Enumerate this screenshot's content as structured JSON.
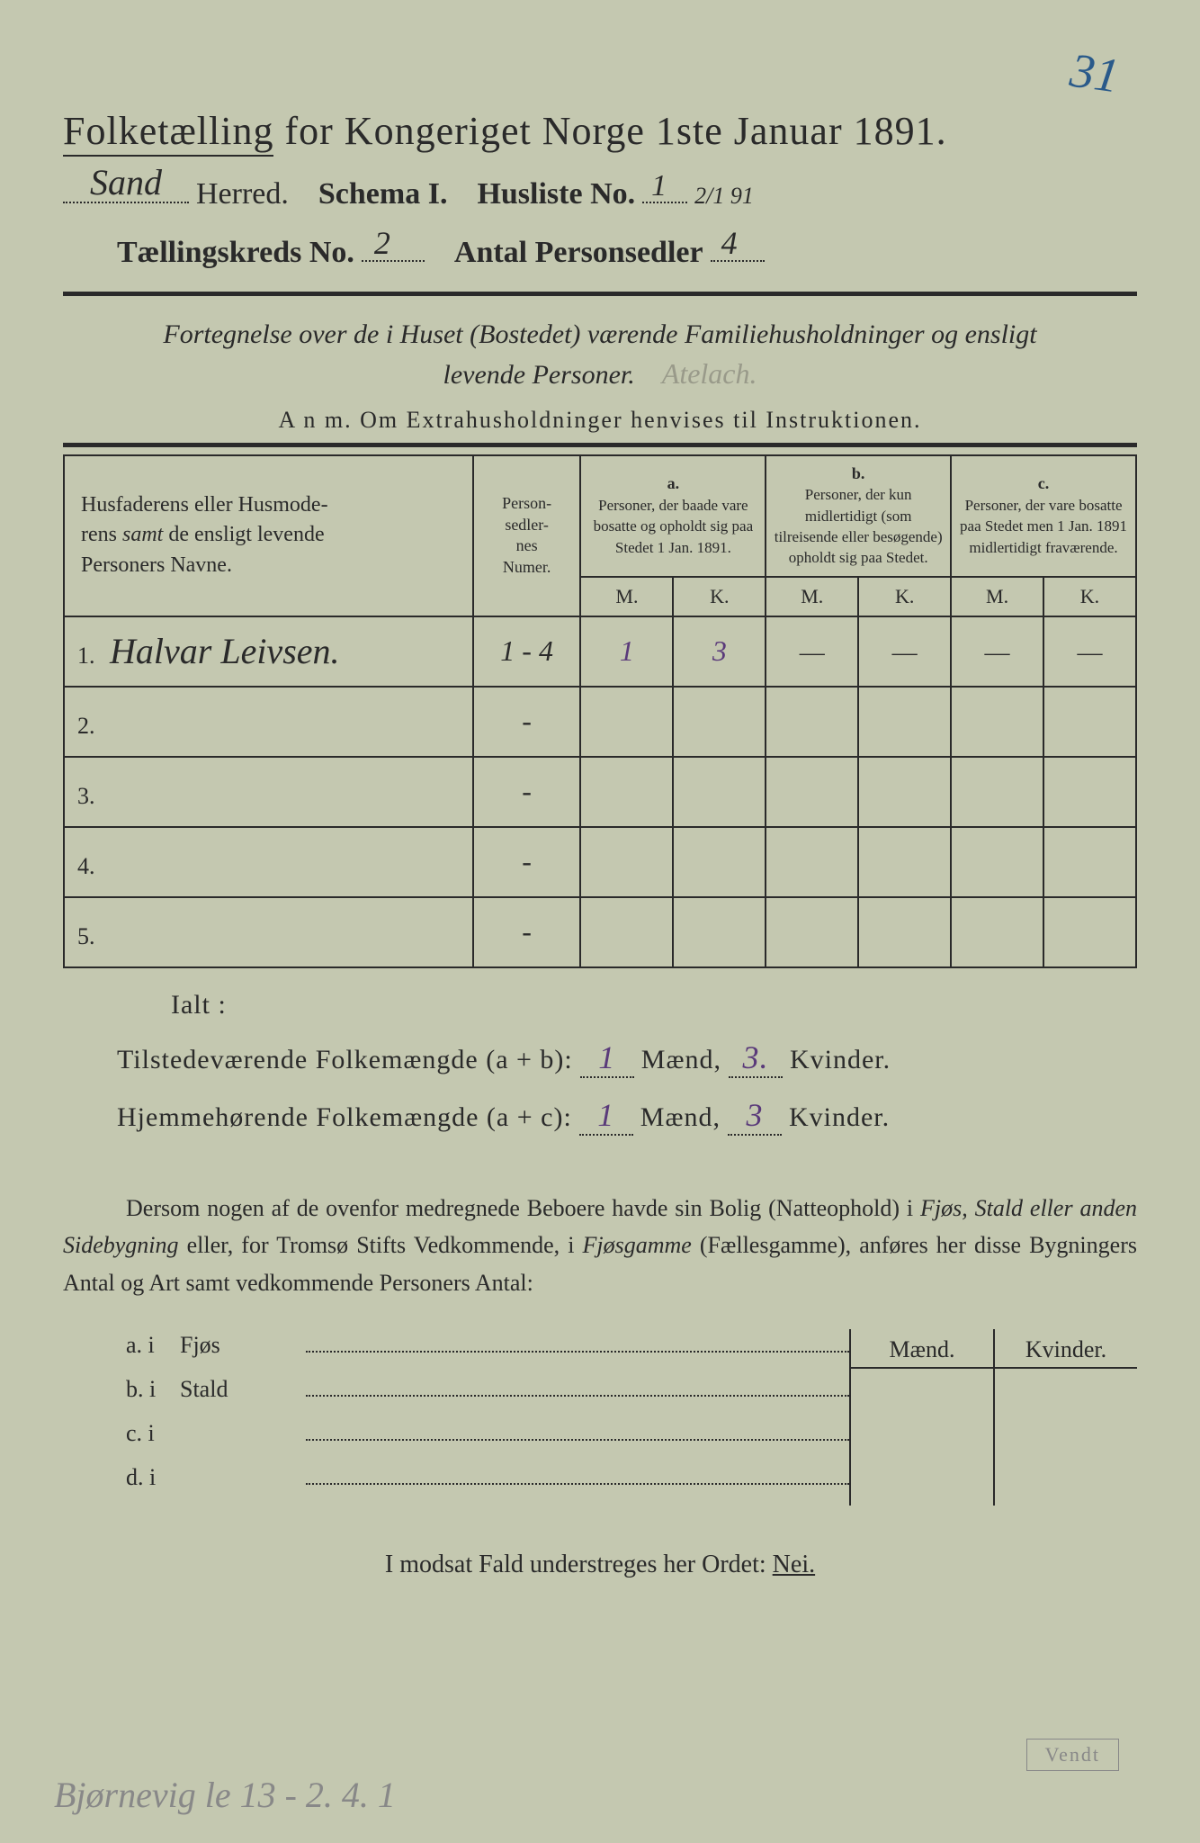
{
  "page_number_top": "31",
  "title": "Folketælling for Kongeriget Norge 1ste Januar 1891.",
  "title_underline_word": "Folketælling",
  "header": {
    "herred_hw": "Sand",
    "herred_label": "Herred.",
    "schema_label": "Schema I.",
    "husliste_label": "Husliste No.",
    "husliste_hw": "1",
    "husliste_frac": "2/1 91",
    "kreds_label": "Tællingskreds No.",
    "kreds_hw": "2",
    "antal_label": "Antal Personsedler",
    "antal_hw": "4"
  },
  "fortegnelse_line1": "Fortegnelse over de i Huset (Bostedet) værende Familiehusholdninger og ensligt",
  "fortegnelse_line2": "levende Personer.",
  "fortegnelse_faint": "Atelach.",
  "anm": "A n m.  Om Extrahusholdninger henvises til Instruktionen.",
  "table": {
    "col_name_header": "Husfaderens eller Husmoderens samt de ensligt levende Personers Navne.",
    "col_num_header": "Personsedlernes Numer.",
    "col_a_label": "a.",
    "col_a_text": "Personer, der baade vare bosatte og opholdt sig paa Stedet 1 Jan. 1891.",
    "col_b_label": "b.",
    "col_b_text": "Personer, der kun midlertidigt (som tilreisende eller besøgende) opholdt sig paa Stedet.",
    "col_c_label": "c.",
    "col_c_text": "Personer, der vare bosatte paa Stedet men 1 Jan. 1891 midlertidigt fraværende.",
    "m_label": "M.",
    "k_label": "K.",
    "rows": [
      {
        "num": "1.",
        "name_hw": "Halvar Leivsen.",
        "sedler": "1 - 4",
        "a_m": "1",
        "a_k": "3",
        "b_m": "—",
        "b_k": "—",
        "c_m": "—",
        "c_k": "—"
      },
      {
        "num": "2.",
        "name_hw": "",
        "sedler": "-",
        "a_m": "",
        "a_k": "",
        "b_m": "",
        "b_k": "",
        "c_m": "",
        "c_k": ""
      },
      {
        "num": "3.",
        "name_hw": "",
        "sedler": "-",
        "a_m": "",
        "a_k": "",
        "b_m": "",
        "b_k": "",
        "c_m": "",
        "c_k": ""
      },
      {
        "num": "4.",
        "name_hw": "",
        "sedler": "-",
        "a_m": "",
        "a_k": "",
        "b_m": "",
        "b_k": "",
        "c_m": "",
        "c_k": ""
      },
      {
        "num": "5.",
        "name_hw": "",
        "sedler": "-",
        "a_m": "",
        "a_k": "",
        "b_m": "",
        "b_k": "",
        "c_m": "",
        "c_k": ""
      }
    ]
  },
  "ialt": "Ialt :",
  "summary": {
    "present_label": "Tilstedeværende Folkemængde (a + b):",
    "present_m": "1",
    "present_k": "3.",
    "home_label": "Hjemmehørende Folkemængde (a + c):",
    "home_m": "1",
    "home_k": "3",
    "maend": "Mænd,",
    "kvinder": "Kvinder."
  },
  "dersom": "Dersom nogen af de ovenfor medregnede Beboere havde sin Bolig (Natteophold) i Fjøs, Stald eller anden Sidebygning eller, for Tromsø Stifts Vedkommende, i Fjøsgamme (Fællesgamme), anføres her disse Bygningers Antal og Art samt vedkommende Personers Antal:",
  "outbuilding": {
    "maend": "Mænd.",
    "kvinder": "Kvinder.",
    "rows": [
      {
        "lbl": "a.  i",
        "txt": "Fjøs"
      },
      {
        "lbl": "b.  i",
        "txt": "Stald"
      },
      {
        "lbl": "c.  i",
        "txt": ""
      },
      {
        "lbl": "d.  i",
        "txt": ""
      }
    ]
  },
  "modsat": "I modsat Fald understreges her Ordet:",
  "nei": "Nei.",
  "bottom_hw": "Bjørnevig le 13 - 2. 4. 1",
  "vendt": "Vendt"
}
